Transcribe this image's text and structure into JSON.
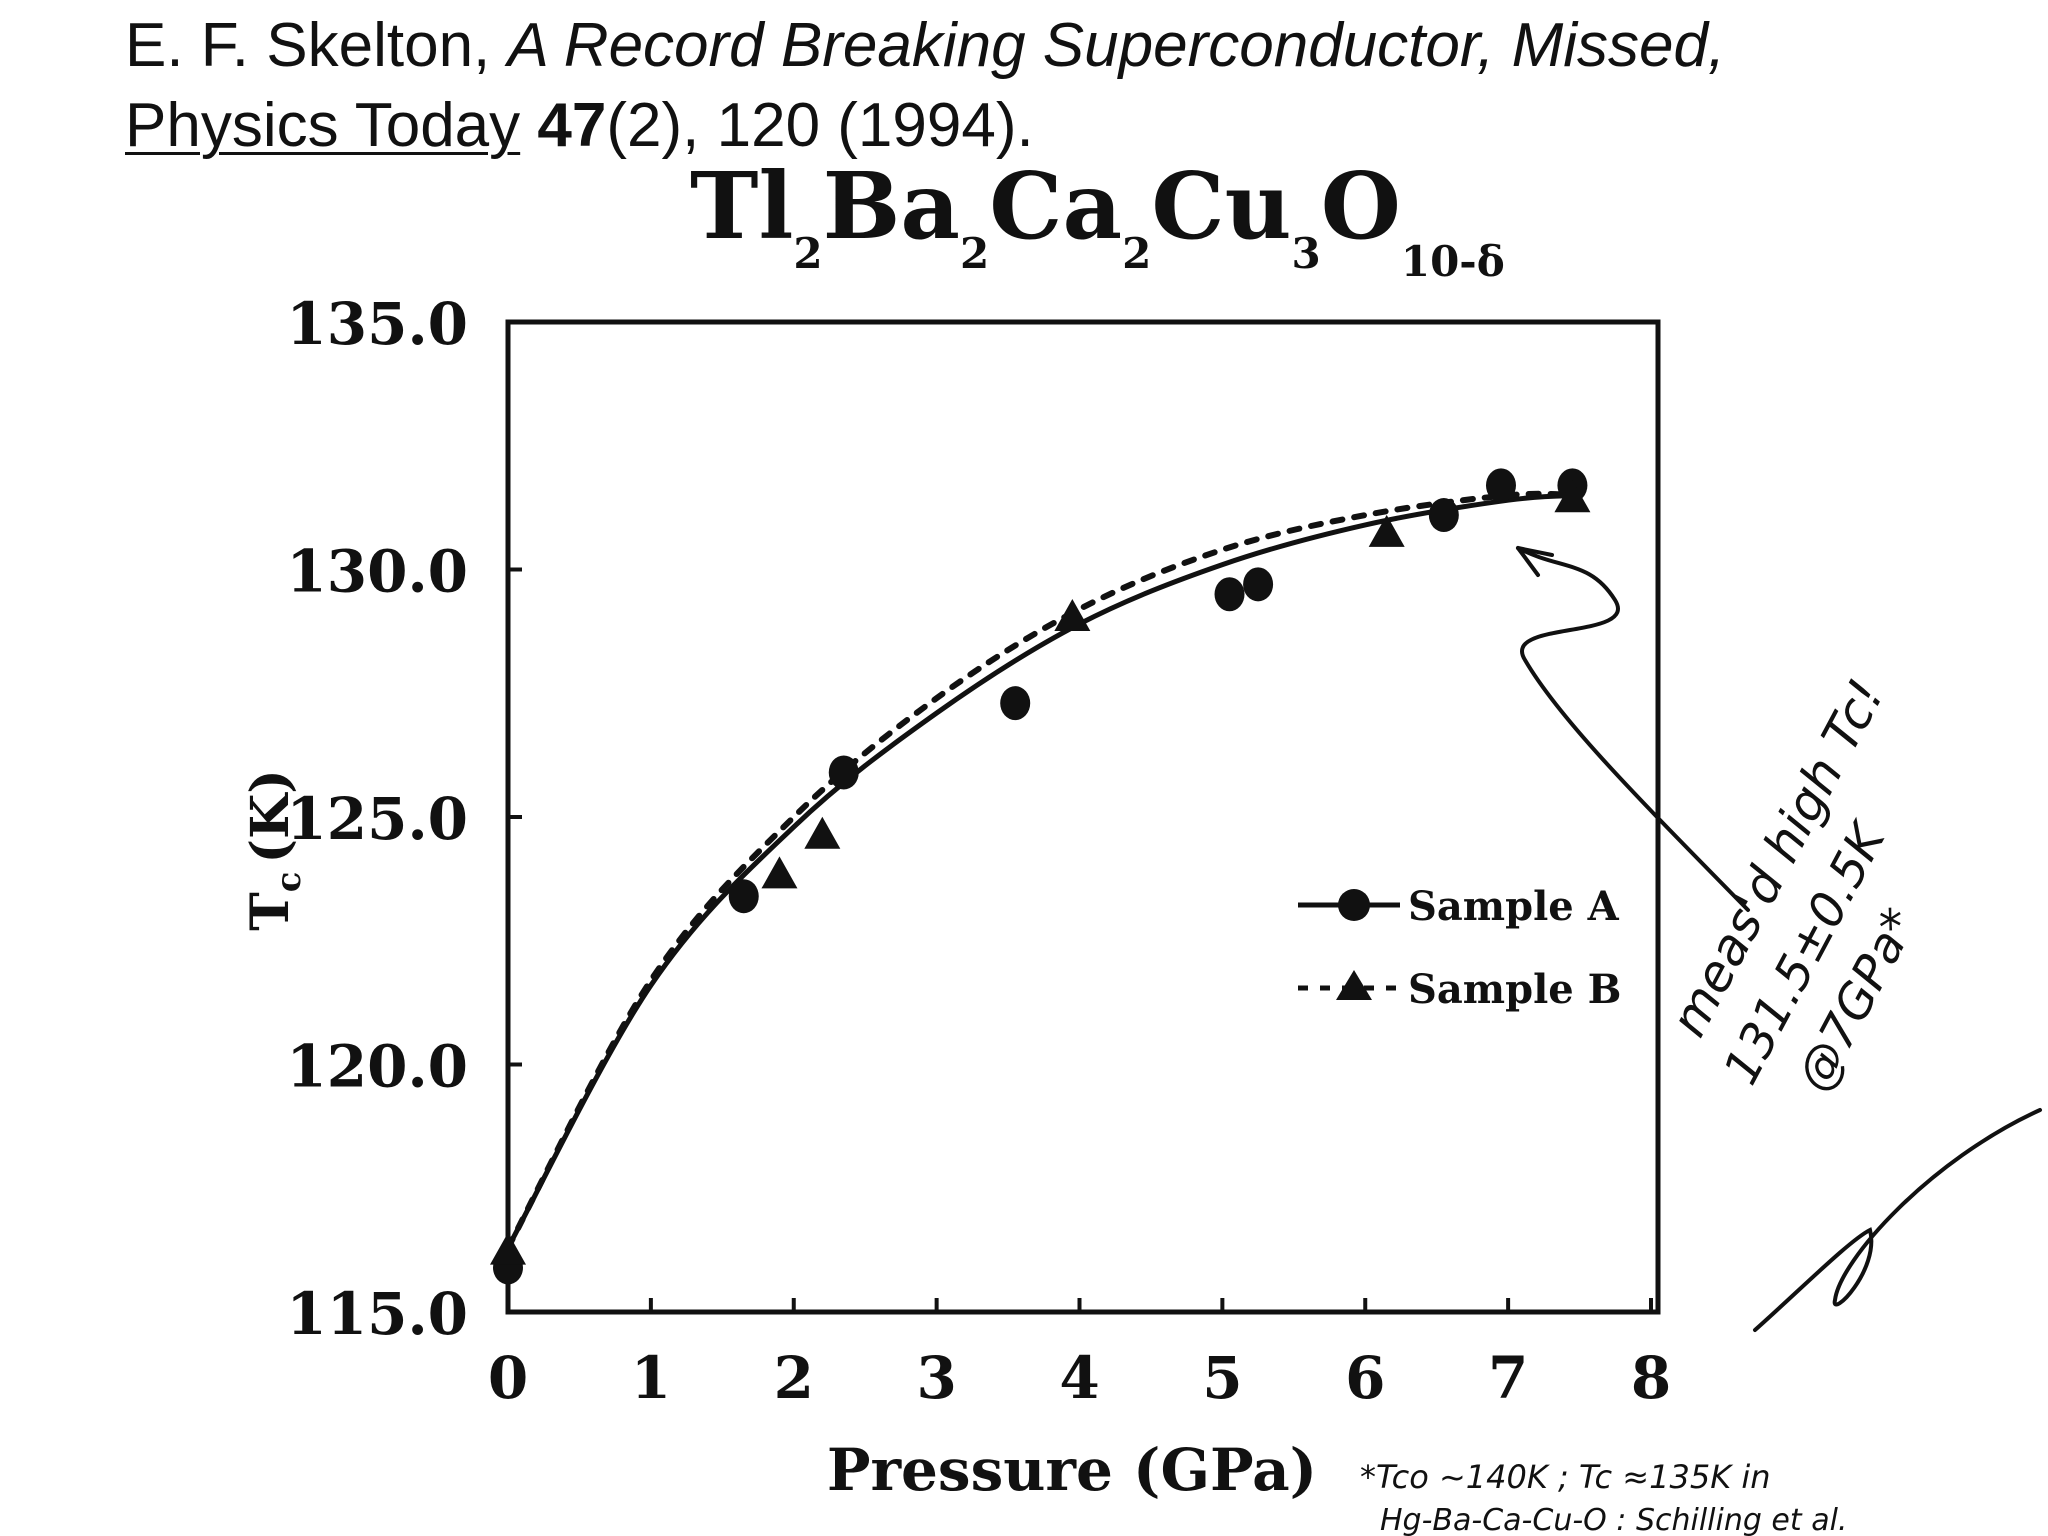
{
  "citation": {
    "author": "E. F. Skelton, ",
    "article_title": "A Record Breaking Superconductor, Missed,",
    "journal": "Physics Today",
    "volume": "47",
    "rest": "(2), 120 (1994)."
  },
  "chart_data": {
    "type": "scatter",
    "title": {
      "parts": [
        {
          "text": "Tl",
          "sub": "2"
        },
        {
          "text": "Ba",
          "sub": "2"
        },
        {
          "text": "Ca",
          "sub": "2"
        },
        {
          "text": "Cu",
          "sub": "3"
        },
        {
          "text": "O",
          "sub": "10-δ"
        }
      ]
    },
    "xlabel": "Pressure (GPa)",
    "ylabel_main": "T",
    "ylabel_sub": "c",
    "ylabel_unit": "(K)",
    "xlim": [
      0,
      8
    ],
    "ylim": [
      115,
      135
    ],
    "xticks": [
      "0",
      "1",
      "2",
      "3",
      "4",
      "5",
      "6",
      "7",
      "8"
    ],
    "yticks": [
      "115.0",
      "120.0",
      "125.0",
      "130.0",
      "135.0"
    ],
    "grid": false,
    "legend_position": "center-right",
    "series": [
      {
        "name": "Sample A",
        "marker": "circle",
        "line": "solid",
        "color": "#111111",
        "points": [
          [
            0.0,
            115.9
          ],
          [
            1.65,
            123.4
          ],
          [
            2.35,
            125.9
          ],
          [
            3.55,
            127.3
          ],
          [
            5.05,
            129.5
          ],
          [
            5.25,
            129.7
          ],
          [
            6.55,
            131.1
          ],
          [
            6.95,
            131.7
          ],
          [
            7.45,
            131.7
          ]
        ],
        "fit": [
          [
            0.0,
            116.3
          ],
          [
            1.0,
            121.6
          ],
          [
            2.0,
            124.8
          ],
          [
            3.0,
            127.1
          ],
          [
            4.0,
            128.9
          ],
          [
            5.0,
            130.1
          ],
          [
            6.0,
            130.9
          ],
          [
            7.0,
            131.4
          ],
          [
            7.5,
            131.5
          ]
        ]
      },
      {
        "name": "Sample B",
        "marker": "triangle",
        "line": "dashed",
        "color": "#111111",
        "points": [
          [
            0.0,
            116.2
          ],
          [
            1.9,
            123.8
          ],
          [
            2.2,
            124.6
          ],
          [
            3.95,
            129.0
          ],
          [
            6.15,
            130.7
          ],
          [
            7.45,
            131.4
          ]
        ],
        "fit": [
          [
            0.0,
            116.3
          ],
          [
            1.0,
            121.7
          ],
          [
            2.0,
            125.0
          ],
          [
            3.0,
            127.4
          ],
          [
            4.0,
            129.2
          ],
          [
            5.0,
            130.4
          ],
          [
            6.0,
            131.1
          ],
          [
            7.0,
            131.5
          ],
          [
            7.5,
            131.5
          ]
        ]
      }
    ],
    "annotations": {
      "note_line1": "meas'd high Tc!",
      "note_line2": "131.5±0.5K",
      "note_line3": "@7GPa*",
      "footnote_line1": "*Tco ~140K ; Tc ≈135K in",
      "footnote_line2": "Hg-Ba-Ca-Cu-O : Schilling et al."
    }
  }
}
